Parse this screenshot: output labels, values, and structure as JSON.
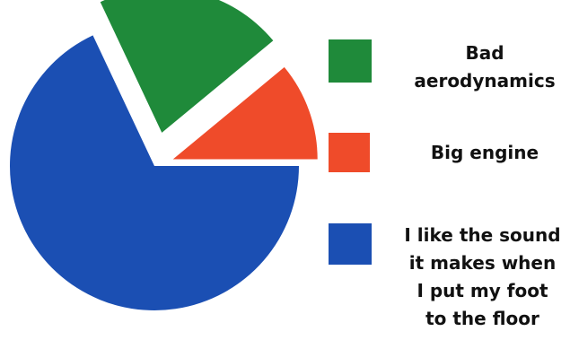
{
  "chart_data": {
    "type": "pie",
    "slices": [
      {
        "label": "Bad aerodynamics",
        "value": 21,
        "color": "#1f8a3a"
      },
      {
        "label": "Big engine",
        "value": 11,
        "color": "#ef4b2a"
      },
      {
        "label": "I like the sound it makes when I put my foot to the floor",
        "value": 68,
        "color": "#1b4fb3"
      }
    ],
    "legend": {
      "placement": "right",
      "entries": [
        {
          "lines": [
            "Bad",
            "aerodynamics"
          ],
          "color": "#1f8a3a"
        },
        {
          "lines": [
            "Big engine"
          ],
          "color": "#ef4b2a"
        },
        {
          "lines": [
            "I like the sound",
            "it makes when",
            "I put my foot",
            "to the floor"
          ],
          "color": "#1b4fb3"
        }
      ]
    }
  }
}
